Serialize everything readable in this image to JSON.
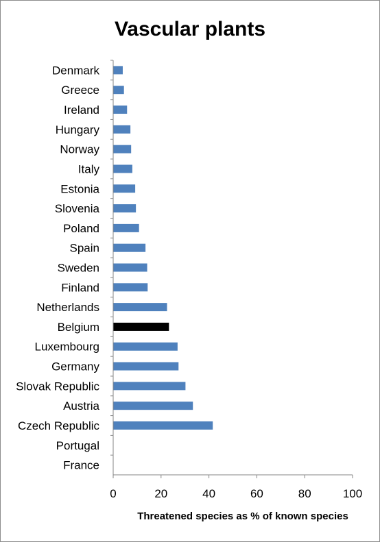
{
  "chart_data": {
    "type": "bar",
    "orientation": "horizontal",
    "title": "Vascular plants",
    "xlabel": "Threatened species as % of known species",
    "ylabel": "",
    "xlim": [
      0,
      100
    ],
    "xticks": [
      0,
      20,
      40,
      60,
      80,
      100
    ],
    "grid": false,
    "legend": "none",
    "categories": [
      "Denmark",
      "Greece",
      "Ireland",
      "Hungary",
      "Norway",
      "Italy",
      "Estonia",
      "Slovenia",
      "Poland",
      "Spain",
      "Sweden",
      "Finland",
      "Netherlands",
      "Belgium",
      "Luxembourg",
      "Germany",
      "Slovak Republic",
      "Austria",
      "Czech Republic",
      "Portugal",
      "France"
    ],
    "values": [
      4.0,
      4.5,
      5.8,
      7.2,
      7.5,
      8.0,
      9.2,
      9.5,
      10.8,
      13.5,
      14.2,
      14.4,
      22.5,
      23.3,
      26.9,
      27.3,
      30.2,
      33.3,
      41.6,
      0,
      0
    ],
    "highlight": "Belgium",
    "colors": {
      "bar": "#4f81bd",
      "highlight": "#000000",
      "axis": "#868686"
    }
  }
}
